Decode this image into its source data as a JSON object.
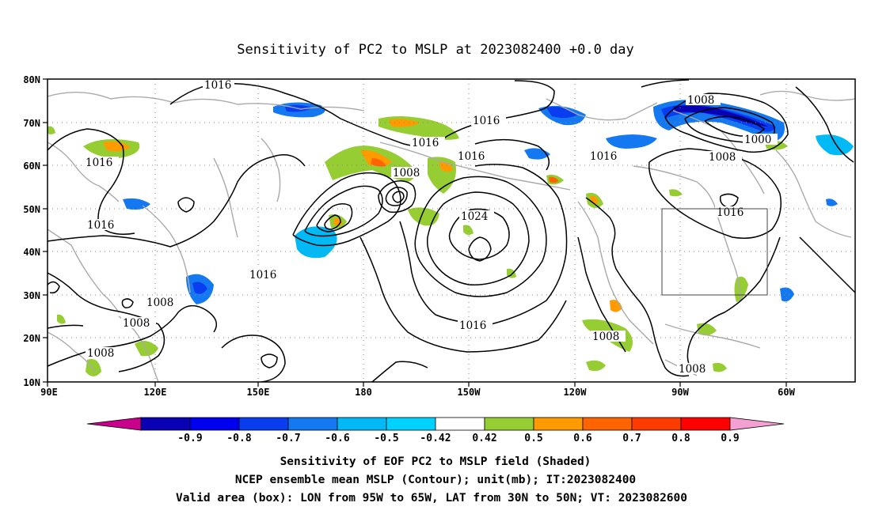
{
  "title": "Sensitivity of PC2 to MSLP at 2023082400 +0.0 day",
  "map": {
    "lon_ticks": [
      "90E",
      "120E",
      "150E",
      "180",
      "150W",
      "120W",
      "90W",
      "60W"
    ],
    "lat_ticks": [
      "80N",
      "70N",
      "60N",
      "50N",
      "40N",
      "30N",
      "20N",
      "10N"
    ],
    "gridlines": true,
    "valid_box": {
      "lon_west": "95W",
      "lon_east": "65W",
      "lat_south": "30N",
      "lat_north": "50N"
    },
    "contour_labels": [
      {
        "text": "1016",
        "lon": "~130E",
        "lat": "~79N"
      },
      {
        "text": "1016",
        "lon": "~103E",
        "lat": "~61N"
      },
      {
        "text": "1016",
        "lon": "~104E",
        "lat": "~44N"
      },
      {
        "text": "1008",
        "lon": "~113E",
        "lat": "~28N"
      },
      {
        "text": "1008",
        "lon": "~111E",
        "lat": "~23N"
      },
      {
        "text": "1008",
        "lon": "~104E",
        "lat": "~16N"
      },
      {
        "text": "1016",
        "lon": "~155E",
        "lat": "~37N"
      },
      {
        "text": "1016",
        "lon": "~163W",
        "lat": "~63N"
      },
      {
        "text": "1008",
        "lon": "~172W",
        "lat": "~57N"
      },
      {
        "text": "1016",
        "lon": "~146W",
        "lat": "~71N"
      },
      {
        "text": "1016",
        "lon": "~150W",
        "lat": "~62N"
      },
      {
        "text": "1024",
        "lon": "~149W",
        "lat": "~48N"
      },
      {
        "text": "1016",
        "lon": "~150W",
        "lat": "~22N"
      },
      {
        "text": "1016",
        "lon": "~114W",
        "lat": "~62N"
      },
      {
        "text": "1008",
        "lon": "~89W",
        "lat": "~74N"
      },
      {
        "text": "1000",
        "lon": "~72W",
        "lat": "~66N"
      },
      {
        "text": "1008",
        "lon": "~83W",
        "lat": "~62N"
      },
      {
        "text": "1016",
        "lon": "~81W",
        "lat": "~48N"
      },
      {
        "text": "1008",
        "lon": "~110W",
        "lat": "~20N"
      },
      {
        "text": "1008",
        "lon": "~87W",
        "lat": "~13N"
      }
    ],
    "colors": {
      "contour": "#000000",
      "coast": "#aaaaaa",
      "grid": "#888888"
    }
  },
  "colorbar": {
    "labels": [
      "-0.9",
      "-0.8",
      "-0.7",
      "-0.6",
      "-0.5",
      "-0.42",
      "0.42",
      "0.5",
      "0.6",
      "0.7",
      "0.8",
      "0.9"
    ],
    "colors": [
      "#c8008c",
      "#0a00b4",
      "#0000f0",
      "#0a3cf0",
      "#1478f0",
      "#00b9f5",
      "#00d2ff",
      "#ffffff",
      "#96cd32",
      "#ff9b00",
      "#ff6400",
      "#ff3c00",
      "#ff0000",
      "#f5a0d2"
    ]
  },
  "captions": [
    "Sensitivity of EOF PC2 to MSLP field (Shaded)",
    "NCEP ensemble mean MSLP (Contour); unit(mb); IT:2023082400",
    "Valid area (box): LON from 95W to 65W, LAT from 30N to 50N; VT: 2023082600"
  ]
}
